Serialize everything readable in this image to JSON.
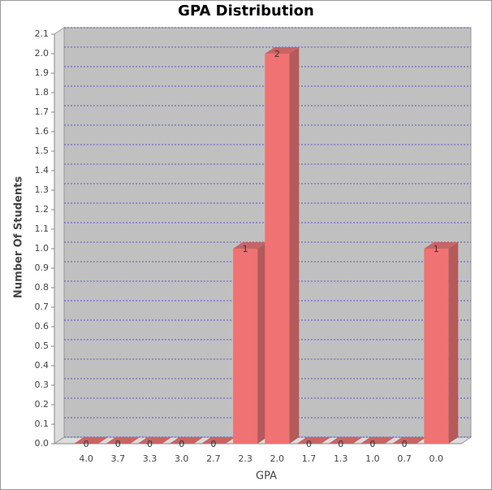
{
  "chart_data": {
    "type": "bar3d",
    "title": "GPA Distribution",
    "x_label": "GPA",
    "y_label": "Number Of Students",
    "categories": [
      "4.0",
      "3.7",
      "3.3",
      "3.0",
      "2.7",
      "2.3",
      "2.0",
      "1.7",
      "1.3",
      "1.0",
      "0.7",
      "0.0"
    ],
    "values": [
      0,
      0,
      0,
      0,
      0,
      1,
      2,
      0,
      0,
      0,
      0,
      1
    ],
    "color": "#f07272",
    "ylim": [
      0,
      2.1
    ],
    "yticks": [
      {
        "value": 0,
        "label": "0.0"
      },
      0.1,
      0.2,
      0.3,
      0.4,
      0.5,
      0.6,
      0.7,
      0.8,
      0.9,
      {
        "value": 1,
        "label": "1.0"
      },
      1.1,
      1.2,
      1.3,
      1.4,
      1.5,
      1.6,
      1.7,
      1.8,
      1.9,
      {
        "value": 2,
        "label": "2.0"
      },
      2.1
    ],
    "grid": true
  }
}
